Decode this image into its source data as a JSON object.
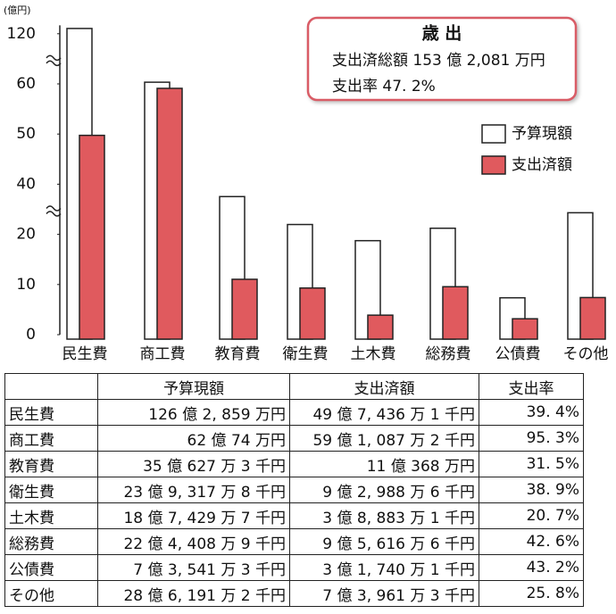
{
  "chart_data": {
    "type": "bar",
    "y_unit_label": "(億円)",
    "categories": [
      "民生費",
      "商工費",
      "教育費",
      "衛生費",
      "土木費",
      "総務費",
      "公債費",
      "その他"
    ],
    "series": [
      {
        "name": "予算現額",
        "color": "#ffffff",
        "values": [
          126.29,
          62.01,
          35.06,
          23.93,
          18.74,
          22.44,
          7.35,
          28.62
        ]
      },
      {
        "name": "支出済額",
        "color": "#e05a5e",
        "values": [
          49.74,
          59.11,
          11.04,
          9.3,
          3.89,
          9.56,
          3.17,
          7.4
        ]
      }
    ],
    "ylim": [
      0,
      130
    ],
    "yticks": [
      0,
      10,
      20,
      40,
      50,
      60,
      120
    ],
    "y_breaks": [
      [
        20,
        40
      ],
      [
        60,
        120
      ]
    ],
    "legend": "upper right",
    "info_box": {
      "title": "歳 出",
      "lines": [
        "支出済総額 153 億 2,081 万円",
        "支出率 47. 2%"
      ]
    }
  },
  "table": {
    "header": [
      "予算現額",
      "支出済額",
      "支出率"
    ],
    "rows": [
      [
        "民生費",
        "126 億 2, 859 万円",
        "49 億 7, 436 万 1 千円",
        "39. 4%"
      ],
      [
        "商工費",
        "62 億 74 万円",
        "59 億 1, 087 万 2 千円",
        "95. 3%"
      ],
      [
        "教育費",
        "35 億 627 万 3 千円",
        "11 億 368 万円",
        "31. 5%"
      ],
      [
        "衛生費",
        "23 億 9, 317 万 8 千円",
        "9 億 2, 988 万 6 千円",
        "38. 9%"
      ],
      [
        "土木費",
        "18 億 7, 429 万 7 千円",
        "3 億 8, 883 万 1 千円",
        "20. 7%"
      ],
      [
        "総務費",
        "22 億 4, 408 万 9 千円",
        "9 億 5, 616 万 6 千円",
        "42. 6%"
      ],
      [
        "公債費",
        "7 億 3, 541 万 3 千円",
        "3 億 1, 740 万 1 千円",
        "43. 2%"
      ],
      [
        "その他",
        "28 億 6, 191 万 2 千円",
        "7 億 3, 961 万 3 千円",
        "25. 8%"
      ]
    ]
  }
}
